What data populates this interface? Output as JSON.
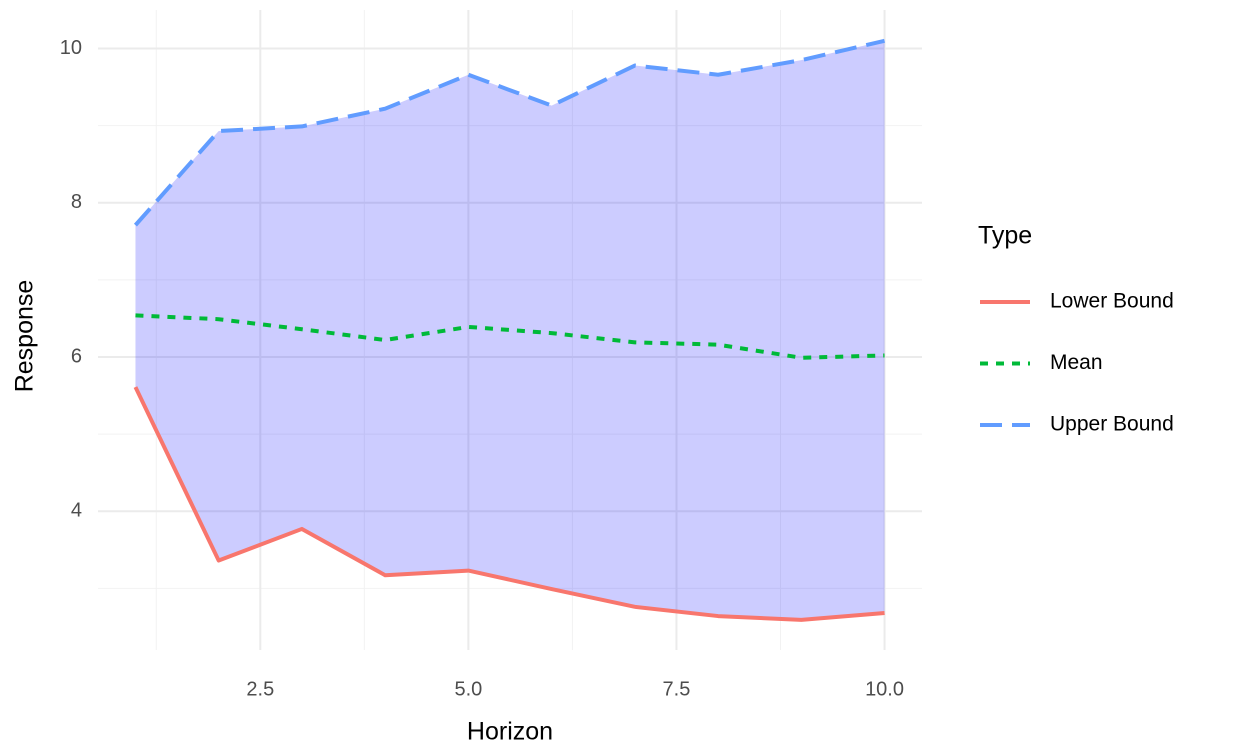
{
  "chart_data": {
    "type": "line",
    "x_label": "Horizon",
    "y_label": "Response",
    "x": [
      1,
      2,
      3,
      4,
      5,
      6,
      7,
      8,
      9,
      10
    ],
    "series": [
      {
        "name": "Lower Bound",
        "color": "#F8766D",
        "linestyle": "solid",
        "values": [
          5.61,
          3.36,
          3.77,
          3.17,
          3.23,
          2.99,
          2.76,
          2.64,
          2.59,
          2.68
        ]
      },
      {
        "name": "Mean",
        "color": "#00BA38",
        "linestyle": "dotted",
        "values": [
          6.54,
          6.49,
          6.36,
          6.22,
          6.39,
          6.31,
          6.19,
          6.16,
          5.99,
          6.02
        ]
      },
      {
        "name": "Upper Bound",
        "color": "#619CFF",
        "linestyle": "dashed",
        "values": [
          7.71,
          8.93,
          8.99,
          9.22,
          9.66,
          9.26,
          9.78,
          9.66,
          9.85,
          10.1
        ]
      }
    ],
    "ribbon": {
      "color": "#0000ff",
      "alpha": 0.2
    },
    "legend_title": "Type",
    "legend_position": "right",
    "xlim": [
      0.55,
      10.45
    ],
    "ylim": [
      2.2,
      10.5
    ],
    "xticks": [
      {
        "value": 2.5,
        "label": "2.5"
      },
      {
        "value": 5,
        "label": "5.0"
      },
      {
        "value": 7.5,
        "label": "7.5"
      },
      {
        "value": 10,
        "label": "10.0"
      }
    ],
    "yticks": [
      4,
      6,
      8,
      10
    ],
    "xminor": [
      1.25,
      3.75,
      6.25,
      8.75
    ],
    "yminor": [
      3,
      5,
      7,
      9
    ],
    "grid": true
  }
}
